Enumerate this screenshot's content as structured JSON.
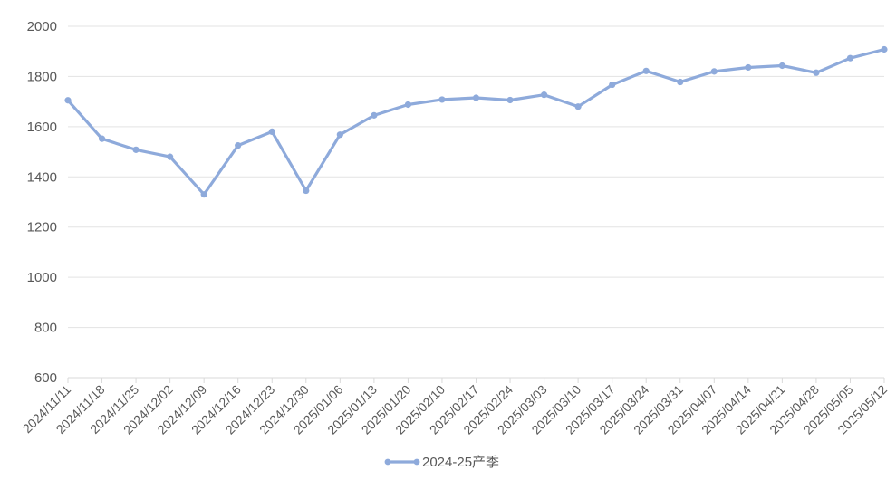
{
  "chart_data": {
    "type": "line",
    "title": "",
    "xlabel": "",
    "ylabel": "",
    "ylim": [
      600,
      2000
    ],
    "yticks": [
      600,
      800,
      1000,
      1200,
      1400,
      1600,
      1800,
      2000
    ],
    "grid": true,
    "legend_position": "bottom",
    "categories": [
      "2024/11/11",
      "2024/11/18",
      "2024/11/25",
      "2024/12/02",
      "2024/12/09",
      "2024/12/16",
      "2024/12/23",
      "2024/12/30",
      "2025/01/06",
      "2025/01/13",
      "2025/01/20",
      "2025/02/10",
      "2025/02/17",
      "2025/02/24",
      "2025/03/03",
      "2025/03/10",
      "2025/03/17",
      "2025/03/24",
      "2025/03/31",
      "2025/04/07",
      "2025/04/14",
      "2025/04/21",
      "2025/04/28",
      "2025/05/05",
      "2025/05/12"
    ],
    "series": [
      {
        "name": "2024-25产季",
        "color": "#8eaadb",
        "values": [
          1705,
          1552,
          1508,
          1480,
          1330,
          1525,
          1580,
          1345,
          1568,
          1645,
          1688,
          1708,
          1715,
          1706,
          1727,
          1680,
          1767,
          1822,
          1778,
          1820,
          1836,
          1843,
          1815,
          1873,
          1908
        ]
      }
    ]
  }
}
